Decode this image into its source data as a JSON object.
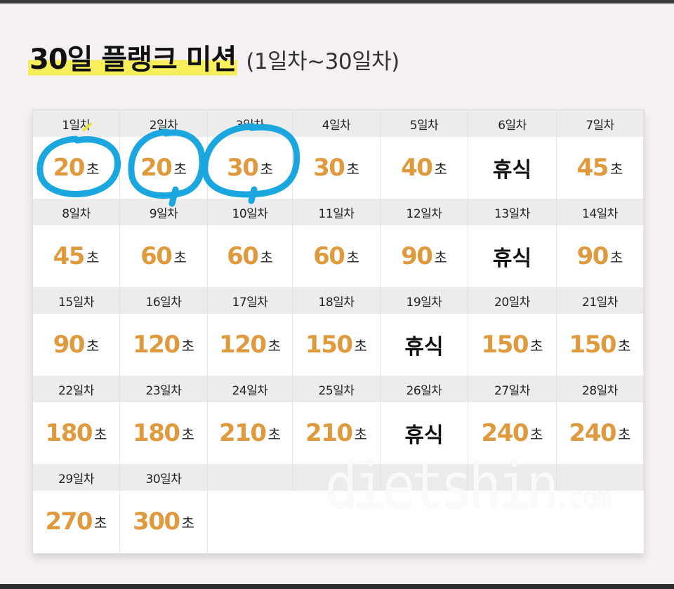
{
  "title": {
    "main": "30일 플랭크 미션",
    "sub": "(1일차~30일차)"
  },
  "unit": "초",
  "days": [
    {
      "label": "1일차",
      "value": "20",
      "rest": false
    },
    {
      "label": "2일차",
      "value": "20",
      "rest": false
    },
    {
      "label": "3일차",
      "value": "30",
      "rest": false
    },
    {
      "label": "4일차",
      "value": "30",
      "rest": false
    },
    {
      "label": "5일차",
      "value": "40",
      "rest": false
    },
    {
      "label": "6일차",
      "value": "휴식",
      "rest": true
    },
    {
      "label": "7일차",
      "value": "45",
      "rest": false
    },
    {
      "label": "8일차",
      "value": "45",
      "rest": false
    },
    {
      "label": "9일차",
      "value": "60",
      "rest": false
    },
    {
      "label": "10일차",
      "value": "60",
      "rest": false
    },
    {
      "label": "11일차",
      "value": "60",
      "rest": false
    },
    {
      "label": "12일차",
      "value": "90",
      "rest": false
    },
    {
      "label": "13일차",
      "value": "휴식",
      "rest": true
    },
    {
      "label": "14일차",
      "value": "90",
      "rest": false
    },
    {
      "label": "15일차",
      "value": "90",
      "rest": false
    },
    {
      "label": "16일차",
      "value": "120",
      "rest": false
    },
    {
      "label": "17일차",
      "value": "120",
      "rest": false
    },
    {
      "label": "18일차",
      "value": "150",
      "rest": false
    },
    {
      "label": "19일차",
      "value": "휴식",
      "rest": true
    },
    {
      "label": "20일차",
      "value": "150",
      "rest": false
    },
    {
      "label": "21일차",
      "value": "150",
      "rest": false
    },
    {
      "label": "22일차",
      "value": "180",
      "rest": false
    },
    {
      "label": "23일차",
      "value": "180",
      "rest": false
    },
    {
      "label": "24일차",
      "value": "210",
      "rest": false
    },
    {
      "label": "25일차",
      "value": "210",
      "rest": false
    },
    {
      "label": "26일차",
      "value": "휴식",
      "rest": true
    },
    {
      "label": "27일차",
      "value": "240",
      "rest": false
    },
    {
      "label": "28일차",
      "value": "240",
      "rest": false
    },
    {
      "label": "29일차",
      "value": "270",
      "rest": false
    },
    {
      "label": "30일차",
      "value": "300",
      "rest": false
    }
  ],
  "watermark": {
    "main": "dietshin",
    "suffix": ".com"
  },
  "annotations": {
    "circled_days": [
      "1일차",
      "2일차",
      "3일차"
    ],
    "color": "#1aa7e0"
  },
  "colors": {
    "number": "#e09a3e",
    "highlight": "#f7ee5c",
    "header_bg": "#ececec"
  }
}
